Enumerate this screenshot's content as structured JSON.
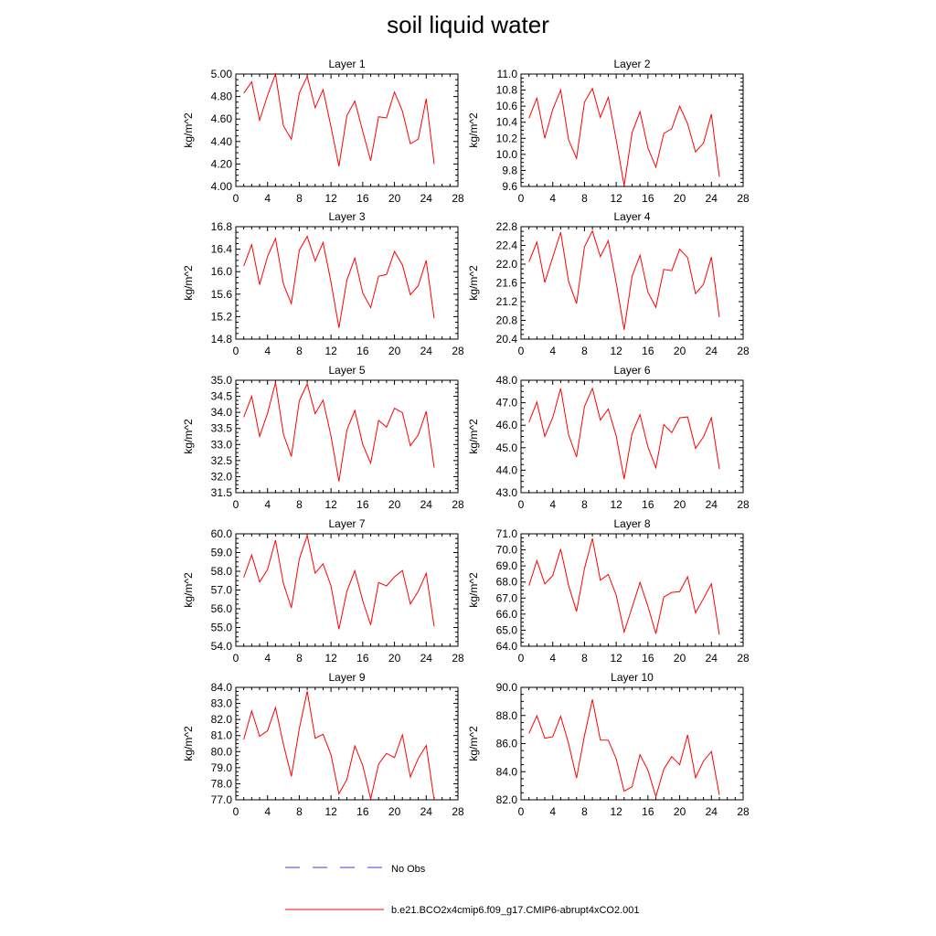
{
  "figure": {
    "title": "soil liquid water"
  },
  "style": {
    "model_color": "#ff0000",
    "obs_color": "#3b3bd6",
    "axis_color": "#000000"
  },
  "legend": {
    "entries": [
      {
        "label": "No Obs",
        "style": "dashed",
        "color": "#3b3bd6"
      },
      {
        "label": "b.e21.BCO2x4cmip6.f09_g17.CMIP6-abrupt4xCO2.001",
        "style": "solid",
        "color": "#ff0000"
      }
    ]
  },
  "chart_data": [
    {
      "type": "line",
      "title": "Layer 1",
      "ylabel": "kg/m^2",
      "xlim": [
        0,
        28
      ],
      "xticks": [
        0,
        4,
        8,
        12,
        16,
        20,
        24,
        28
      ],
      "ylim": [
        4.0,
        5.0
      ],
      "yticks": [
        "4.00",
        "4.20",
        "4.40",
        "4.60",
        "4.80",
        "5.00"
      ],
      "x": [
        1,
        2,
        3,
        4,
        5,
        6,
        7,
        8,
        9,
        10,
        11,
        12,
        13,
        14,
        15,
        16,
        17,
        18,
        19,
        20,
        21,
        22,
        23,
        24,
        25
      ],
      "series": [
        {
          "values": [
            4.83,
            4.93,
            4.59,
            4.81,
            5.0,
            4.54,
            4.42,
            4.83,
            4.98,
            4.7,
            4.86,
            4.53,
            4.18,
            4.63,
            4.76,
            4.49,
            4.23,
            4.62,
            4.61,
            4.84,
            4.67,
            4.38,
            4.42,
            4.78,
            4.2
          ]
        }
      ]
    },
    {
      "type": "line",
      "title": "Layer 2",
      "ylabel": "kg/m^2",
      "xlim": [
        0,
        28
      ],
      "xticks": [
        0,
        4,
        8,
        12,
        16,
        20,
        24,
        28
      ],
      "ylim": [
        9.6,
        11.0
      ],
      "yticks": [
        "9.6",
        "9.8",
        "10.0",
        "10.2",
        "10.4",
        "10.6",
        "10.8",
        "11.0"
      ],
      "x": [
        1,
        2,
        3,
        4,
        5,
        6,
        7,
        8,
        9,
        10,
        11,
        12,
        13,
        14,
        15,
        16,
        17,
        18,
        19,
        20,
        21,
        22,
        23,
        24,
        25
      ],
      "series": [
        {
          "values": [
            10.45,
            10.7,
            10.2,
            10.56,
            10.8,
            10.18,
            9.95,
            10.65,
            10.82,
            10.46,
            10.71,
            10.18,
            9.61,
            10.27,
            10.53,
            10.08,
            9.84,
            10.26,
            10.32,
            10.6,
            10.38,
            10.03,
            10.14,
            10.5,
            9.72
          ]
        }
      ]
    },
    {
      "type": "line",
      "title": "Layer 3",
      "ylabel": "kg/m^2",
      "xlim": [
        0,
        28
      ],
      "xticks": [
        0,
        4,
        8,
        12,
        16,
        20,
        24,
        28
      ],
      "ylim": [
        14.8,
        16.8
      ],
      "yticks": [
        "14.8",
        "15.2",
        "15.6",
        "16.0",
        "16.4",
        "16.8"
      ],
      "x": [
        1,
        2,
        3,
        4,
        5,
        6,
        7,
        8,
        9,
        10,
        11,
        12,
        13,
        14,
        15,
        16,
        17,
        18,
        19,
        20,
        21,
        22,
        23,
        24,
        25
      ],
      "series": [
        {
          "values": [
            16.1,
            16.48,
            15.77,
            16.27,
            16.59,
            15.78,
            15.43,
            16.38,
            16.63,
            16.19,
            16.52,
            15.81,
            15.0,
            15.85,
            16.24,
            15.62,
            15.36,
            15.92,
            15.95,
            16.36,
            16.12,
            15.59,
            15.75,
            16.2,
            15.17
          ]
        }
      ]
    },
    {
      "type": "line",
      "title": "Layer 4",
      "ylabel": "kg/m^2",
      "xlim": [
        0,
        28
      ],
      "xticks": [
        0,
        4,
        8,
        12,
        16,
        20,
        24,
        28
      ],
      "ylim": [
        20.4,
        22.8
      ],
      "yticks": [
        "20.4",
        "20.8",
        "21.2",
        "21.6",
        "22.0",
        "22.4",
        "22.8"
      ],
      "x": [
        1,
        2,
        3,
        4,
        5,
        6,
        7,
        8,
        9,
        10,
        11,
        12,
        13,
        14,
        15,
        16,
        17,
        18,
        19,
        20,
        21,
        22,
        23,
        24,
        25
      ],
      "series": [
        {
          "values": [
            22.05,
            22.47,
            21.61,
            22.15,
            22.68,
            21.63,
            21.16,
            22.37,
            22.71,
            22.16,
            22.5,
            21.6,
            20.6,
            21.74,
            22.19,
            21.4,
            21.08,
            21.89,
            21.86,
            22.32,
            22.14,
            21.37,
            21.57,
            22.15,
            20.87
          ]
        }
      ]
    },
    {
      "type": "line",
      "title": "Layer 5",
      "ylabel": "kg/m^2",
      "xlim": [
        0,
        28
      ],
      "xticks": [
        0,
        4,
        8,
        12,
        16,
        20,
        24,
        28
      ],
      "ylim": [
        31.5,
        35.0
      ],
      "yticks": [
        "31.5",
        "32.0",
        "32.5",
        "33.0",
        "33.5",
        "34.0",
        "34.5",
        "35.0"
      ],
      "x": [
        1,
        2,
        3,
        4,
        5,
        6,
        7,
        8,
        9,
        10,
        11,
        12,
        13,
        14,
        15,
        16,
        17,
        18,
        19,
        20,
        21,
        22,
        23,
        24,
        25
      ],
      "series": [
        {
          "values": [
            33.85,
            34.5,
            33.25,
            33.97,
            34.93,
            33.32,
            32.63,
            34.36,
            34.89,
            33.96,
            34.38,
            33.26,
            31.85,
            33.45,
            34.06,
            33.0,
            32.42,
            33.75,
            33.54,
            34.13,
            33.99,
            32.96,
            33.3,
            34.03,
            32.28
          ]
        }
      ]
    },
    {
      "type": "line",
      "title": "Layer 6",
      "ylabel": "kg/m^2",
      "xlim": [
        0,
        28
      ],
      "xticks": [
        0,
        4,
        8,
        12,
        16,
        20,
        24,
        28
      ],
      "ylim": [
        43.0,
        48.0
      ],
      "yticks": [
        "43.0",
        "44.0",
        "45.0",
        "46.0",
        "47.0",
        "48.0"
      ],
      "x": [
        1,
        2,
        3,
        4,
        5,
        6,
        7,
        8,
        9,
        10,
        11,
        12,
        13,
        14,
        15,
        16,
        17,
        18,
        19,
        20,
        21,
        22,
        23,
        24,
        25
      ],
      "series": [
        {
          "values": [
            46.13,
            47.03,
            45.5,
            46.34,
            47.64,
            45.57,
            44.59,
            46.83,
            47.64,
            46.23,
            46.72,
            45.52,
            43.61,
            45.63,
            46.47,
            45.03,
            44.11,
            46.03,
            45.67,
            46.33,
            46.37,
            44.97,
            45.48,
            46.33,
            44.05
          ]
        }
      ]
    },
    {
      "type": "line",
      "title": "Layer 7",
      "ylabel": "kg/m^2",
      "xlim": [
        0,
        28
      ],
      "xticks": [
        0,
        4,
        8,
        12,
        16,
        20,
        24,
        28
      ],
      "ylim": [
        54.0,
        60.0
      ],
      "yticks": [
        "54.0",
        "55.0",
        "56.0",
        "57.0",
        "58.0",
        "59.0",
        "60.0"
      ],
      "x": [
        1,
        2,
        3,
        4,
        5,
        6,
        7,
        8,
        9,
        10,
        11,
        12,
        13,
        14,
        15,
        16,
        17,
        18,
        19,
        20,
        21,
        22,
        23,
        24,
        25
      ],
      "series": [
        {
          "values": [
            57.67,
            58.87,
            57.43,
            58.09,
            59.66,
            57.35,
            56.05,
            58.65,
            59.91,
            57.9,
            58.4,
            57.22,
            54.91,
            56.93,
            58.03,
            56.42,
            55.14,
            57.4,
            57.22,
            57.7,
            58.04,
            56.25,
            56.94,
            57.89,
            55.06
          ]
        }
      ]
    },
    {
      "type": "line",
      "title": "Layer 8",
      "ylabel": "kg/m^2",
      "xlim": [
        0,
        28
      ],
      "xticks": [
        0,
        4,
        8,
        12,
        16,
        20,
        24,
        28
      ],
      "ylim": [
        64.0,
        71.0
      ],
      "yticks": [
        "64.0",
        "65.0",
        "66.0",
        "67.0",
        "68.0",
        "69.0",
        "70.0",
        "71.0"
      ],
      "x": [
        1,
        2,
        3,
        4,
        5,
        6,
        7,
        8,
        9,
        10,
        11,
        12,
        13,
        14,
        15,
        16,
        17,
        18,
        19,
        20,
        21,
        22,
        23,
        24,
        25
      ],
      "series": [
        {
          "values": [
            67.77,
            69.33,
            67.88,
            68.4,
            70.05,
            67.78,
            66.16,
            68.84,
            70.71,
            68.11,
            68.47,
            67.18,
            64.89,
            66.41,
            67.98,
            66.48,
            64.78,
            67.07,
            67.35,
            67.4,
            68.32,
            66.08,
            66.97,
            67.89,
            64.72
          ]
        }
      ]
    },
    {
      "type": "line",
      "title": "Layer 9",
      "ylabel": "kg/m^2",
      "xlim": [
        0,
        28
      ],
      "xticks": [
        0,
        4,
        8,
        12,
        16,
        20,
        24,
        28
      ],
      "ylim": [
        77.0,
        84.0
      ],
      "yticks": [
        "77.0",
        "78.0",
        "79.0",
        "80.0",
        "81.0",
        "82.0",
        "83.0",
        "84.0"
      ],
      "x": [
        1,
        2,
        3,
        4,
        5,
        6,
        7,
        8,
        9,
        10,
        11,
        12,
        13,
        14,
        15,
        16,
        17,
        18,
        19,
        20,
        21,
        22,
        23,
        24,
        25
      ],
      "series": [
        {
          "values": [
            80.76,
            82.53,
            80.95,
            81.3,
            82.74,
            80.46,
            78.46,
            81.43,
            83.76,
            80.83,
            81.08,
            79.8,
            77.37,
            78.27,
            80.36,
            79.14,
            77.05,
            79.22,
            79.89,
            79.63,
            81.04,
            78.42,
            79.58,
            80.38,
            76.98
          ]
        }
      ]
    },
    {
      "type": "line",
      "title": "Layer 10",
      "ylabel": "kg/m^2",
      "xlim": [
        0,
        28
      ],
      "xticks": [
        0,
        4,
        8,
        12,
        16,
        20,
        24,
        28
      ],
      "ylim": [
        82.0,
        90.0
      ],
      "yticks": [
        "82.0",
        "84.0",
        "86.0",
        "88.0",
        "90.0"
      ],
      "x": [
        1,
        2,
        3,
        4,
        5,
        6,
        7,
        8,
        9,
        10,
        11,
        12,
        13,
        14,
        15,
        16,
        17,
        18,
        19,
        20,
        21,
        22,
        23,
        24,
        25
      ],
      "series": [
        {
          "values": [
            86.72,
            87.98,
            86.38,
            86.49,
            87.95,
            85.99,
            83.55,
            86.57,
            89.14,
            86.25,
            86.24,
            84.92,
            82.61,
            82.93,
            85.21,
            84.1,
            82.22,
            84.18,
            85.07,
            84.5,
            86.61,
            83.57,
            84.75,
            85.44,
            82.35
          ]
        }
      ]
    }
  ]
}
